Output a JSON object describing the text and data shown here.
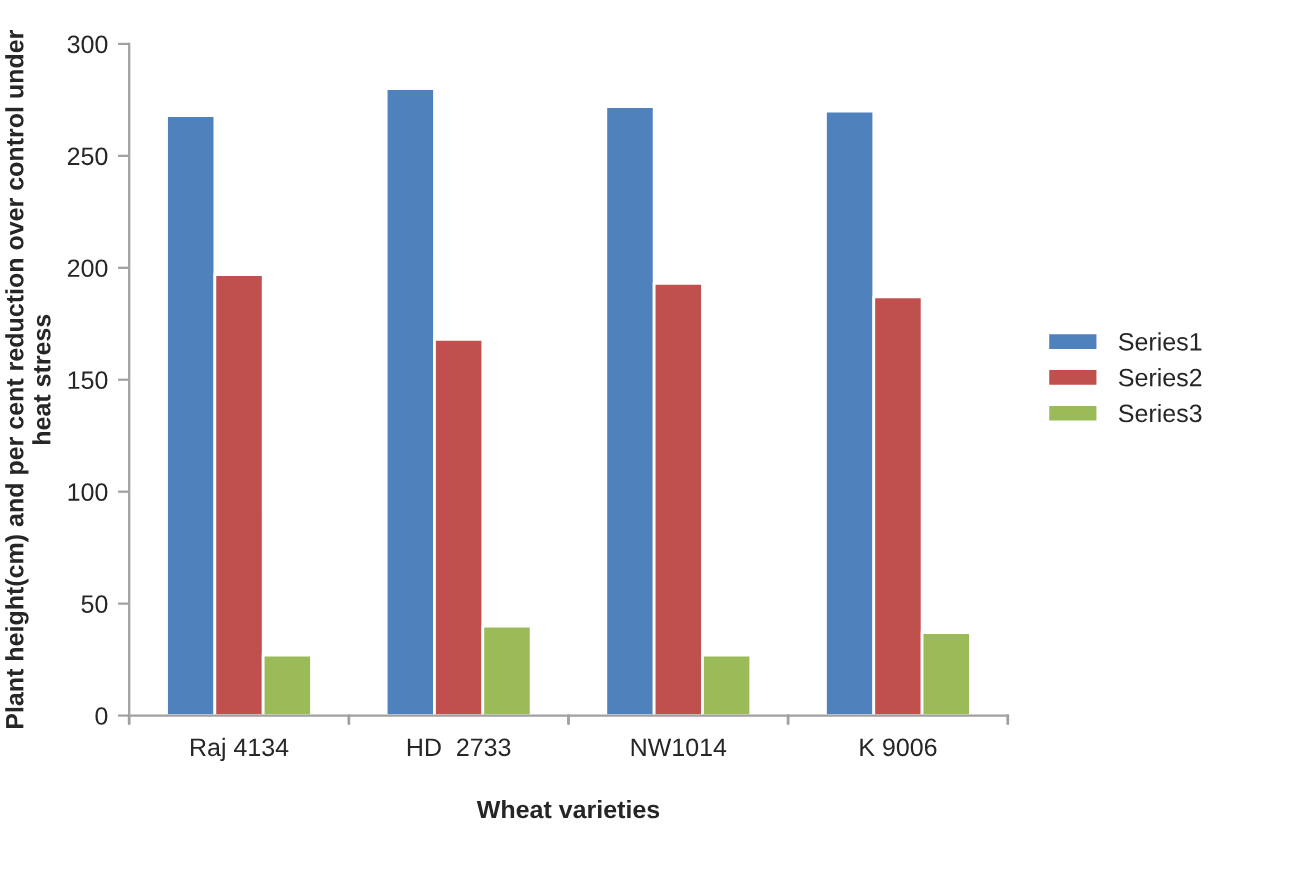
{
  "chart_data": {
    "type": "bar",
    "xlabel": "Wheat varieties",
    "ylabel": "Plant height(cm) and per cent reduction over control under heat stress",
    "categories": [
      "Raj 4134",
      "HD  2733",
      "NW1014",
      "K 9006"
    ],
    "series": [
      {
        "name": "Series1",
        "color": "#4f81bd",
        "values": [
          268,
          280,
          272,
          270
        ]
      },
      {
        "name": "Series2",
        "color": "#c0504d",
        "values": [
          197,
          168,
          193,
          187
        ]
      },
      {
        "name": "Series3",
        "color": "#9bbb59",
        "values": [
          27,
          40,
          27,
          37
        ]
      }
    ],
    "ylim": [
      0,
      300
    ],
    "yticks": [
      0,
      50,
      100,
      150,
      200,
      250,
      300
    ],
    "legend": "right",
    "grid": false
  }
}
